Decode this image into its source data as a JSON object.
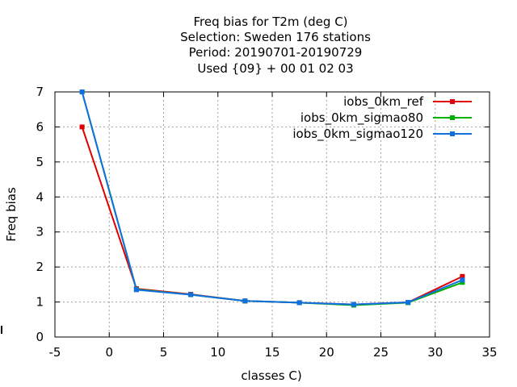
{
  "chart_data": {
    "type": "line",
    "title_lines": [
      "Freq bias  for T2m (deg C)",
      "Selection: Sweden     176 stations",
      "Period: 20190701-20190729",
      "Used {09} + 00 01 02 03"
    ],
    "xlabel": "classes C)",
    "ylabel": "Freq bias",
    "xlim": [
      -5,
      35
    ],
    "ylim": [
      0,
      7
    ],
    "xticks": [
      -5,
      0,
      5,
      10,
      15,
      20,
      25,
      30,
      35
    ],
    "yticks": [
      0,
      1,
      2,
      3,
      4,
      5,
      6,
      7
    ],
    "grid": true,
    "legend_position": "top-right",
    "series": [
      {
        "name": "iobs_0km_ref",
        "color": "#e00000",
        "x": [
          -2.5,
          2.5,
          7.5,
          12.5,
          17.5,
          22.5,
          27.5,
          32.5
        ],
        "y": [
          6.0,
          1.38,
          1.22,
          1.03,
          0.98,
          0.93,
          0.99,
          1.73
        ]
      },
      {
        "name": "iobs_0km_sigmao80",
        "color": "#00b000",
        "x": [
          -2.5,
          2.5,
          7.5,
          12.5,
          17.5,
          22.5,
          27.5,
          32.5
        ],
        "y": [
          7.0,
          1.36,
          1.21,
          1.03,
          0.98,
          0.91,
          0.98,
          1.56
        ]
      },
      {
        "name": "iobs_0km_sigmao120",
        "color": "#1070e0",
        "x": [
          -2.5,
          2.5,
          7.5,
          12.5,
          17.5,
          22.5,
          27.5,
          32.5
        ],
        "y": [
          7.0,
          1.35,
          1.21,
          1.03,
          0.98,
          0.93,
          0.99,
          1.63
        ]
      }
    ]
  }
}
